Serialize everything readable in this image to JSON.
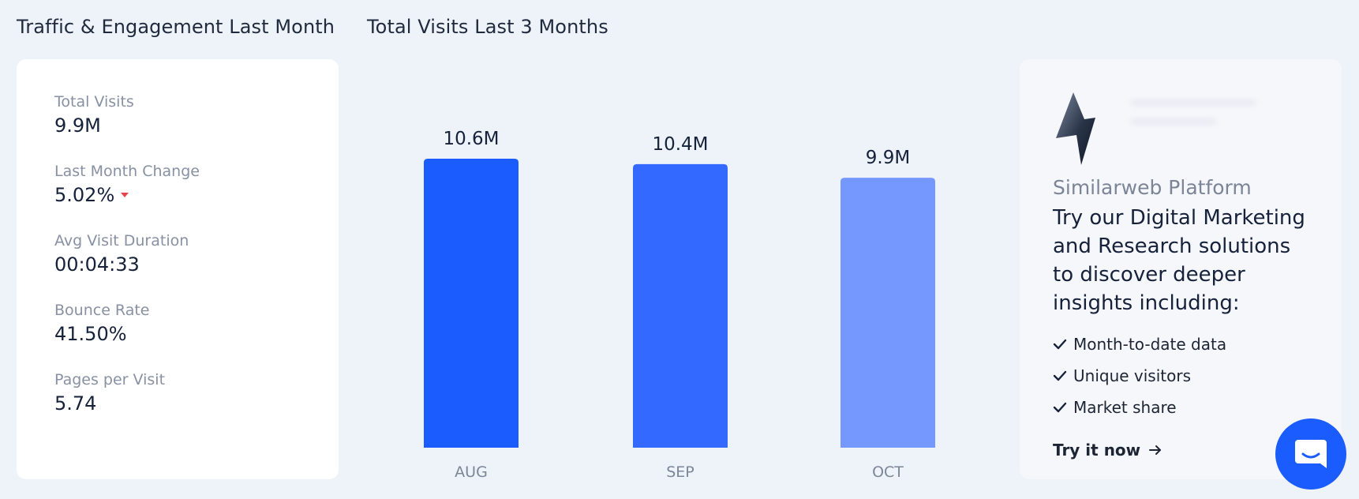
{
  "sections": {
    "engagement_title": "Traffic & Engagement Last Month",
    "visits_title": "Total Visits Last 3 Months"
  },
  "metrics": [
    {
      "label": "Total Visits",
      "value": "9.9M"
    },
    {
      "label": "Last Month Change",
      "value": "5.02%",
      "trend": "down",
      "trend_color": "#e8434d"
    },
    {
      "label": "Avg Visit Duration",
      "value": "00:04:33"
    },
    {
      "label": "Bounce Rate",
      "value": "41.50%"
    },
    {
      "label": "Pages per Visit",
      "value": "5.74"
    }
  ],
  "chart_data": {
    "type": "bar",
    "categories": [
      "AUG",
      "SEP",
      "OCT"
    ],
    "values": [
      10.6,
      10.4,
      9.9
    ],
    "labels": [
      "10.6M",
      "10.4M",
      "9.9M"
    ],
    "colors": [
      "#1b5cff",
      "#3369ff",
      "#7598ff"
    ],
    "ylim": [
      0,
      10.6
    ]
  },
  "promo": {
    "brand": "Similarweb Platform",
    "headline": "Try our Digital Marketing and Research solutions to discover deeper insights including:",
    "features": [
      "Month-to-date data",
      "Unique visitors",
      "Market share"
    ],
    "cta": "Try it now",
    "logo_icon": "lightning-bolt-icon"
  },
  "chat": {
    "icon": "chat-bubble-icon",
    "color": "#1b5cff"
  }
}
